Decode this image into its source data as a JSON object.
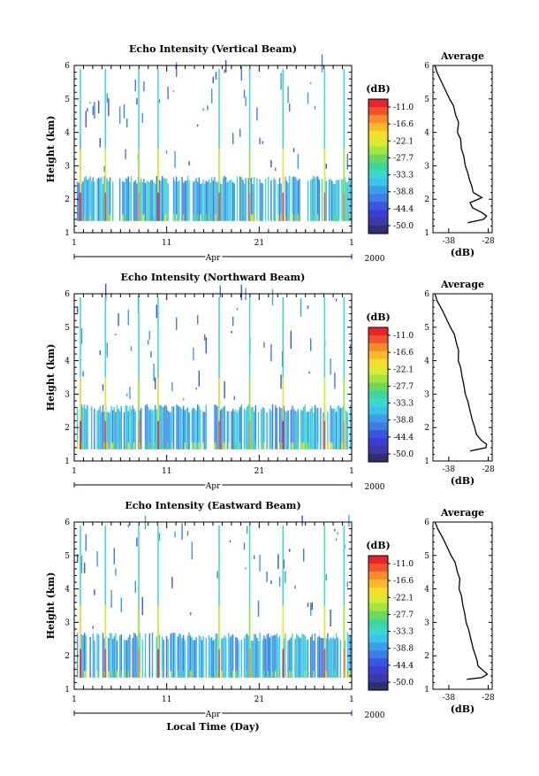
{
  "chart_data": [
    {
      "type": "heatmap",
      "title": "Echo Intensity (Vertical Beam)",
      "ylabel": "Height (km)",
      "xlabel": "",
      "x_ticks": [
        "1",
        "11",
        "21",
        "1"
      ],
      "month_label": "Apr",
      "year_label": "2000",
      "ylim": [
        1,
        6
      ],
      "y_ticks": [
        "1",
        "2",
        "3",
        "4",
        "5",
        "6"
      ],
      "colorbar": {
        "label": "(dB)",
        "ticks": [
          "-11.0",
          "-16.6",
          "-22.1",
          "-27.7",
          "-33.3",
          "-38.8",
          "-44.4",
          "-50.0"
        ],
        "colors": [
          "#e8242b",
          "#f2522a",
          "#f88c2c",
          "#fbb82b",
          "#f4e02c",
          "#d8ea32",
          "#a3e43e",
          "#6ad95c",
          "#3ed79a",
          "#3ad9cf",
          "#3ac3ee",
          "#3a9ee9",
          "#3c7de6",
          "#3a55e0",
          "#3c3dd2",
          "#3a3aa6",
          "#2d2f70"
        ]
      },
      "average_panel": {
        "title": "Average",
        "xlabel": "(dB)",
        "x_ticks": [
          "-38",
          "-28"
        ],
        "y_ticks": [
          "1",
          "2",
          "3",
          "4",
          "5",
          "6"
        ],
        "height_km": [
          6.0,
          5.8,
          5.5,
          5.3,
          5.0,
          4.8,
          4.5,
          4.3,
          4.0,
          3.8,
          3.5,
          3.3,
          3.0,
          2.8,
          2.6,
          2.4,
          2.2,
          2.05,
          1.9,
          1.75,
          1.6,
          1.5,
          1.4,
          1.3
        ],
        "intensity_db": [
          -41.5,
          -41.0,
          -39.8,
          -39.0,
          -37.8,
          -36.8,
          -36.2,
          -35.5,
          -35.8,
          -35.0,
          -34.8,
          -34.2,
          -33.8,
          -33.2,
          -32.8,
          -32.2,
          -31.8,
          -29.6,
          -32.6,
          -32.0,
          -29.6,
          -28.4,
          -29.2,
          -33.2
        ]
      }
    },
    {
      "type": "heatmap",
      "title": "Echo Intensity (Northward Beam)",
      "ylabel": "Height (km)",
      "xlabel": "",
      "x_ticks": [
        "1",
        "11",
        "21",
        "1"
      ],
      "month_label": "Apr",
      "year_label": "2000",
      "ylim": [
        1,
        6
      ],
      "y_ticks": [
        "1",
        "2",
        "3",
        "4",
        "5",
        "6"
      ],
      "colorbar": {
        "label": "(dB)",
        "ticks": [
          "-11.0",
          "-16.6",
          "-22.1",
          "-27.7",
          "-33.3",
          "-38.8",
          "-44.4",
          "-50.0"
        ],
        "colors": [
          "#e8242b",
          "#f2522a",
          "#f88c2c",
          "#fbb82b",
          "#f4e02c",
          "#d8ea32",
          "#a3e43e",
          "#6ad95c",
          "#3ed79a",
          "#3ad9cf",
          "#3ac3ee",
          "#3a9ee9",
          "#3c7de6",
          "#3a55e0",
          "#3c3dd2",
          "#3a3aa6",
          "#2d2f70"
        ]
      },
      "average_panel": {
        "title": "Average",
        "xlabel": "(dB)",
        "x_ticks": [
          "-38",
          "-28"
        ],
        "y_ticks": [
          "1",
          "2",
          "3",
          "4",
          "5",
          "6"
        ],
        "height_km": [
          6.0,
          5.8,
          5.5,
          5.3,
          5.0,
          4.8,
          4.5,
          4.3,
          4.0,
          3.8,
          3.5,
          3.3,
          3.0,
          2.8,
          2.6,
          2.4,
          2.2,
          2.0,
          1.8,
          1.6,
          1.5,
          1.4,
          1.3
        ],
        "intensity_db": [
          -41.5,
          -41.0,
          -39.6,
          -38.8,
          -37.6,
          -36.6,
          -36.0,
          -35.5,
          -35.6,
          -35.0,
          -34.6,
          -34.2,
          -33.8,
          -33.2,
          -32.8,
          -32.4,
          -32.0,
          -31.4,
          -31.0,
          -29.6,
          -28.4,
          -28.6,
          -32.6
        ]
      }
    },
    {
      "type": "heatmap",
      "title": "Echo Intensity (Eastward Beam)",
      "ylabel": "Height (km)",
      "xlabel": "Local Time (Day)",
      "x_ticks": [
        "1",
        "11",
        "21",
        "1"
      ],
      "month_label": "Apr",
      "year_label": "2000",
      "ylim": [
        1,
        6
      ],
      "y_ticks": [
        "1",
        "2",
        "3",
        "4",
        "5",
        "6"
      ],
      "colorbar": {
        "label": "(dB)",
        "ticks": [
          "-11.0",
          "-16.6",
          "-22.1",
          "-27.7",
          "-33.3",
          "-38.8",
          "-44.4",
          "-50.0"
        ],
        "colors": [
          "#e8242b",
          "#f2522a",
          "#f88c2c",
          "#fbb82b",
          "#f4e02c",
          "#d8ea32",
          "#a3e43e",
          "#6ad95c",
          "#3ed79a",
          "#3ad9cf",
          "#3ac3ee",
          "#3a9ee9",
          "#3c7de6",
          "#3a55e0",
          "#3c3dd2",
          "#3a3aa6",
          "#2d2f70"
        ]
      },
      "average_panel": {
        "title": "Average",
        "xlabel": "(dB)",
        "x_ticks": [
          "-38",
          "-28"
        ],
        "y_ticks": [
          "1",
          "2",
          "3",
          "4",
          "5",
          "6"
        ],
        "height_km": [
          6.0,
          5.8,
          5.5,
          5.3,
          5.0,
          4.8,
          4.5,
          4.3,
          4.0,
          3.8,
          3.5,
          3.3,
          3.0,
          2.8,
          2.6,
          2.4,
          2.2,
          2.0,
          1.85,
          1.7,
          1.55,
          1.45,
          1.35,
          1.3
        ],
        "intensity_db": [
          -41.5,
          -40.8,
          -39.4,
          -38.6,
          -37.4,
          -36.4,
          -35.8,
          -35.2,
          -35.4,
          -34.8,
          -34.4,
          -34.0,
          -33.6,
          -33.0,
          -32.6,
          -32.2,
          -31.8,
          -31.2,
          -30.8,
          -30.6,
          -29.2,
          -28.2,
          -29.6,
          -33.4
        ]
      }
    }
  ]
}
